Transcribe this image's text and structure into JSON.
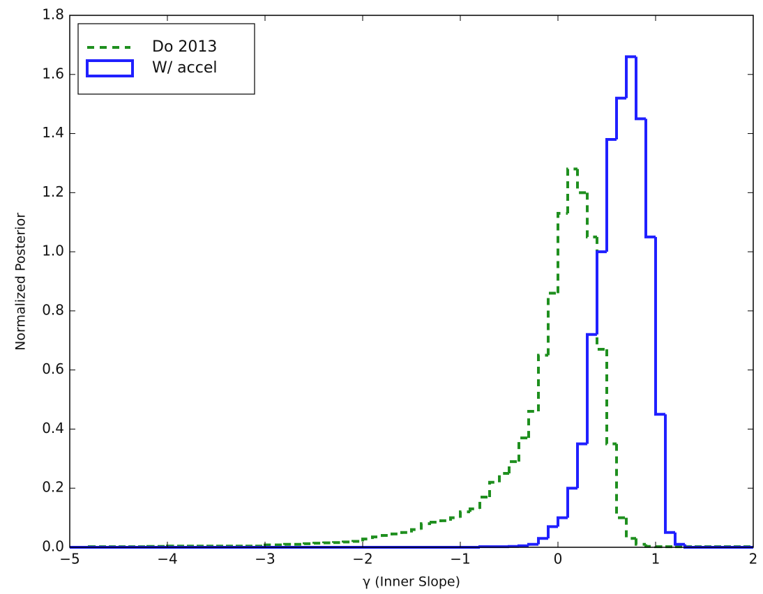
{
  "chart_data": {
    "type": "histogram",
    "xlabel": "γ (Inner Slope)",
    "ylabel": "Normalized Posterior",
    "xlim": [
      -5,
      2
    ],
    "ylim": [
      0,
      1.8
    ],
    "xticks": [
      {
        "value": -5,
        "label": "−5"
      },
      {
        "value": -4,
        "label": "−4"
      },
      {
        "value": -3,
        "label": "−3"
      },
      {
        "value": -2,
        "label": "−2"
      },
      {
        "value": -1,
        "label": "−1"
      },
      0,
      1,
      2
    ],
    "yticks": [
      {
        "value": 0,
        "label": "0.0"
      },
      {
        "value": 0.2,
        "label": "0.2"
      },
      {
        "value": 0.4,
        "label": "0.4"
      },
      {
        "value": 0.6,
        "label": "0.6"
      },
      {
        "value": 0.8,
        "label": "0.8"
      },
      {
        "value": 1,
        "label": "1.0"
      },
      {
        "value": 1.2,
        "label": "1.2"
      },
      {
        "value": 1.4,
        "label": "1.4"
      },
      {
        "value": 1.6,
        "label": "1.6"
      },
      {
        "value": 1.8,
        "label": "1.8"
      }
    ],
    "legend": "upper left",
    "bins": [
      -5,
      -4.9,
      -4.8,
      -4.7,
      -4.6,
      -4.5,
      -4.4,
      -4.3,
      -4.2,
      -4.1,
      -4,
      -3.9,
      -3.8,
      -3.7,
      -3.6,
      -3.5,
      -3.4,
      -3.3,
      -3.2,
      -3.1,
      -3,
      -2.9,
      -2.8,
      -2.7,
      -2.6,
      -2.5,
      -2.4,
      -2.3,
      -2.2,
      -2.1,
      -2,
      -1.9,
      -1.8,
      -1.7,
      -1.6,
      -1.5,
      -1.4,
      -1.3,
      -1.2,
      -1.1,
      -1,
      -0.9,
      -0.8,
      -0.7,
      -0.6,
      -0.5,
      -0.4,
      -0.3,
      -0.2,
      -0.1,
      0,
      0.1,
      0.2,
      0.3,
      0.4,
      0.5,
      0.6,
      0.7,
      0.8,
      0.9,
      1,
      1.1,
      1.2,
      1.3,
      1.4,
      1.5,
      1.6,
      1.7,
      1.8,
      1.9,
      2
    ],
    "series": [
      {
        "name": "Do 2013",
        "color": "#1f8f1f",
        "linestyle": "dashed",
        "values": [
          0,
          0,
          0.002,
          0.002,
          0.002,
          0.002,
          0.002,
          0.002,
          0.003,
          0.003,
          0.004,
          0.004,
          0.004,
          0.004,
          0.004,
          0.004,
          0.004,
          0.004,
          0.004,
          0.004,
          0.008,
          0.008,
          0.01,
          0.01,
          0.012,
          0.014,
          0.015,
          0.016,
          0.018,
          0.02,
          0.028,
          0.035,
          0.04,
          0.045,
          0.05,
          0.06,
          0.08,
          0.085,
          0.09,
          0.1,
          0.12,
          0.13,
          0.17,
          0.22,
          0.25,
          0.29,
          0.37,
          0.46,
          0.65,
          0.86,
          1.13,
          1.28,
          1.2,
          1.05,
          0.67,
          0.35,
          0.1,
          0.03,
          0.01,
          0.003,
          0.002,
          0.002,
          0.002,
          0.002,
          0.002,
          0.002,
          0.002,
          0.002,
          0.002,
          0.002
        ]
      },
      {
        "name": "W/ accel",
        "color": "#2020ff",
        "linestyle": "solid",
        "values": [
          0,
          0,
          0,
          0,
          0,
          0,
          0,
          0,
          0,
          0,
          0,
          0,
          0,
          0,
          0,
          0,
          0,
          0,
          0,
          0,
          0,
          0,
          0,
          0,
          0,
          0,
          0,
          0,
          0,
          0,
          0,
          0,
          0,
          0,
          0,
          0,
          0,
          0,
          0,
          0,
          0,
          0,
          0.002,
          0.002,
          0.002,
          0.003,
          0.005,
          0.01,
          0.03,
          0.07,
          0.1,
          0.2,
          0.35,
          0.72,
          1,
          1.38,
          1.52,
          1.66,
          1.45,
          1.05,
          0.45,
          0.05,
          0.01,
          0,
          0,
          0,
          0,
          0,
          0,
          0
        ]
      }
    ]
  }
}
